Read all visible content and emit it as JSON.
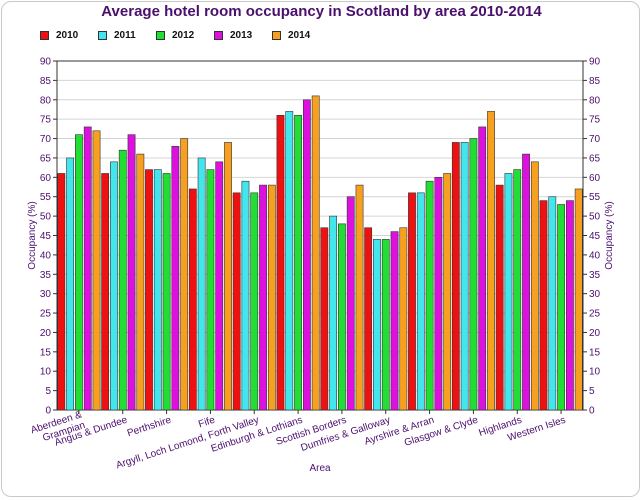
{
  "chart_data": {
    "type": "bar",
    "title": "Average hotel room occupancy in Scotland by area 2010-2014",
    "xlabel": "Area",
    "ylabel": "Occupancy (%)",
    "ylabel_right": "Occupancy (%)",
    "ylim": [
      0,
      90
    ],
    "yticks": [
      "0",
      "5",
      "10",
      "15",
      "20",
      "25",
      "30",
      "35",
      "40",
      "45",
      "50",
      "55",
      "60",
      "65",
      "70",
      "75",
      "80",
      "85",
      "90"
    ],
    "grid": true,
    "legend_position": "top-left",
    "categories": [
      [
        "Aberdeen &",
        "Grampian"
      ],
      [
        "Angus & Dundee"
      ],
      [
        "Perthshire"
      ],
      [
        "Fife"
      ],
      [
        "Argyll, Loch Lomond, Forth Valley"
      ],
      [
        "Edinburgh & Lothians"
      ],
      [
        "Scottish Borders"
      ],
      [
        "Dumfries & Galloway"
      ],
      [
        "Ayrshire & Arran"
      ],
      [
        "Glasgow & Clyde"
      ],
      [
        "Highlands"
      ],
      [
        "Western Isles"
      ]
    ],
    "series": [
      {
        "name": "2010",
        "color": "#ee1111",
        "values": [
          61,
          61,
          62,
          57,
          56,
          76,
          47,
          47,
          56,
          69,
          58,
          54
        ]
      },
      {
        "name": "2011",
        "color": "#44e6ee",
        "values": [
          65,
          64,
          62,
          65,
          59,
          77,
          50,
          44,
          56,
          69,
          61,
          55
        ]
      },
      {
        "name": "2012",
        "color": "#22dd33",
        "values": [
          71,
          67,
          61,
          62,
          56,
          76,
          48,
          44,
          59,
          70,
          62,
          53
        ]
      },
      {
        "name": "2013",
        "color": "#dd11dd",
        "values": [
          73,
          71,
          68,
          64,
          58,
          80,
          55,
          46,
          60,
          73,
          66,
          54
        ]
      },
      {
        "name": "2014",
        "color": "#f7a020",
        "values": [
          72,
          66,
          70,
          69,
          58,
          81,
          58,
          47,
          61,
          77,
          64,
          57
        ]
      }
    ]
  }
}
